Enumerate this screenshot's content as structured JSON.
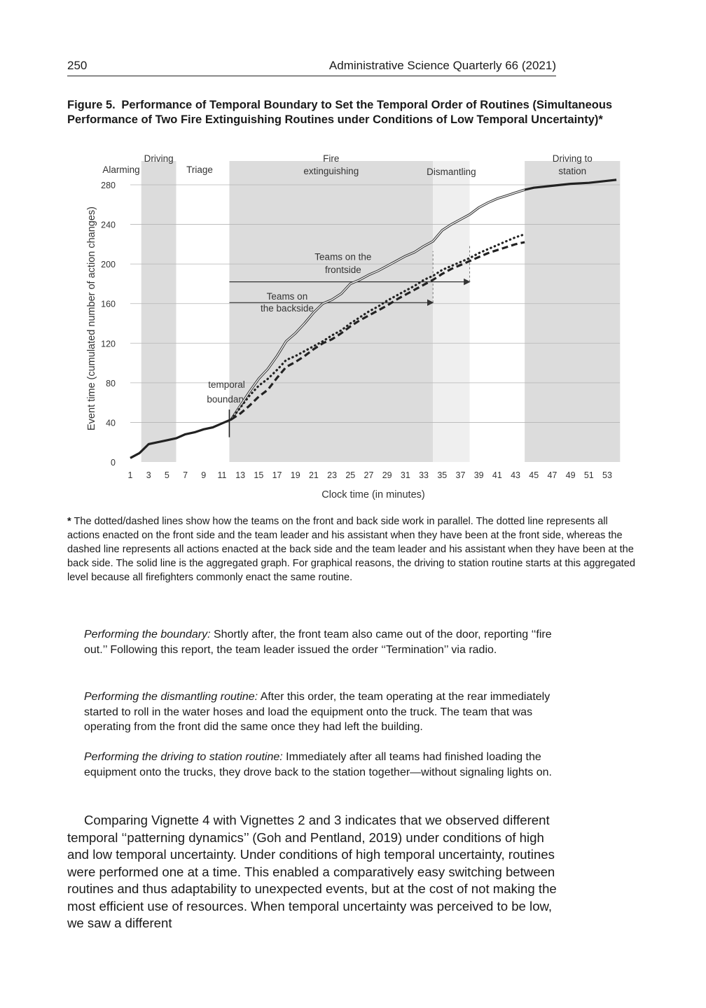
{
  "header": {
    "page_number": "250",
    "journal": "Administrative Science Quarterly 66 (2021)"
  },
  "figure": {
    "label": "Figure 5.",
    "title": "Performance of Temporal Boundary to Set the Temporal Order of Routines (Simultaneous Performance of Two Fire Extinguishing Routines under Conditions of Low Temporal Uncertainty)*"
  },
  "chart_data": {
    "type": "line",
    "xlabel": "Clock time (in minutes)",
    "ylabel": "Event time (cumulated number of action changes)",
    "xlim": [
      1,
      54
    ],
    "ylim": [
      0,
      280
    ],
    "x_ticks": [
      1,
      3,
      5,
      7,
      9,
      11,
      13,
      15,
      17,
      19,
      21,
      23,
      25,
      27,
      29,
      31,
      33,
      35,
      37,
      39,
      41,
      43,
      45,
      47,
      49,
      51,
      53
    ],
    "y_ticks": [
      0,
      40,
      80,
      120,
      160,
      200,
      240,
      280
    ],
    "grid": true,
    "phases": [
      {
        "name": "Alarming",
        "start": 0.5,
        "end": 2.2,
        "shade": "none"
      },
      {
        "name": "Driving",
        "start": 2.2,
        "end": 6.0,
        "shade": "#dcdcdc"
      },
      {
        "name": "Triage",
        "start": 6.0,
        "end": 11.8,
        "shade": "none"
      },
      {
        "name": "Fire extinguishing",
        "start": 11.8,
        "end": 34.0,
        "shade": "#dcdcdc"
      },
      {
        "name": "Dismantling",
        "start": 34.0,
        "end": 38.0,
        "shade": "#efefef"
      },
      {
        "name": "Driving to station",
        "start": 44.0,
        "end": 54.4,
        "shade": "#dcdcdc"
      }
    ],
    "series": [
      {
        "style": "solid-bold",
        "x": [
          1,
          2,
          3,
          4,
          5,
          6,
          7,
          8,
          9,
          10,
          11,
          12
        ],
        "y": [
          4,
          9,
          18,
          20,
          22,
          24,
          28,
          30,
          33,
          35,
          39,
          43
        ]
      },
      {
        "style": "double-outline",
        "x": [
          12,
          13,
          14,
          15,
          16,
          17,
          18,
          19,
          20,
          21,
          22,
          23,
          24,
          25,
          26,
          27,
          28,
          29,
          30,
          31,
          32,
          33,
          34,
          35,
          36,
          37,
          38,
          39,
          40,
          41,
          42,
          43,
          44
        ],
        "y": [
          43,
          57,
          71,
          84,
          94,
          107,
          122,
          130,
          140,
          151,
          160,
          164,
          170,
          180,
          184,
          189,
          193,
          198,
          203,
          208,
          212,
          218,
          223,
          234,
          240,
          245,
          250,
          257,
          262,
          266,
          269,
          272,
          275
        ]
      },
      {
        "style": "dotted",
        "x": [
          12,
          13,
          14,
          15,
          16,
          17,
          18,
          19,
          20,
          21,
          22,
          23,
          24,
          25,
          26,
          27,
          28,
          29,
          30,
          31,
          32,
          33,
          34,
          35,
          36,
          37,
          38,
          39,
          40,
          41,
          42,
          43,
          44
        ],
        "y": [
          43,
          55,
          67,
          77,
          84,
          93,
          103,
          107,
          112,
          117,
          122,
          128,
          133,
          140,
          146,
          152,
          157,
          163,
          168,
          173,
          178,
          184,
          188,
          194,
          198,
          202,
          206,
          211,
          215,
          219,
          223,
          227,
          230
        ]
      },
      {
        "style": "dashed",
        "x": [
          12,
          13,
          14,
          15,
          16,
          17,
          18,
          19,
          20,
          21,
          22,
          23,
          24,
          25,
          26,
          27,
          28,
          29,
          30,
          31,
          32,
          33,
          34,
          35,
          36,
          37,
          38,
          39,
          40,
          41,
          42,
          43,
          44
        ],
        "y": [
          43,
          49,
          57,
          66,
          73,
          85,
          96,
          101,
          107,
          114,
          120,
          124,
          130,
          137,
          143,
          148,
          153,
          158,
          164,
          169,
          174,
          179,
          184,
          190,
          195,
          199,
          203,
          207,
          211,
          214,
          217,
          220,
          222
        ]
      },
      {
        "style": "solid-bold",
        "x": [
          44,
          45,
          47,
          49,
          51,
          53,
          54
        ],
        "y": [
          275,
          277,
          279,
          281,
          282,
          284,
          285
        ]
      }
    ],
    "annotations": [
      {
        "text": "temporal",
        "x": 11.5,
        "y": 75
      },
      {
        "text": "boundary",
        "x": 11.5,
        "y": 60
      },
      {
        "text": "Teams on the",
        "x": 24.2,
        "y": 204
      },
      {
        "text": "frontside",
        "x": 24.2,
        "y": 191
      },
      {
        "text": "Teams on",
        "x": 18.1,
        "y": 164
      },
      {
        "text": "the backside",
        "x": 18.1,
        "y": 152
      }
    ],
    "arrows": [
      {
        "label": "Teams on the frontside",
        "from": 11.8,
        "to": 38.0,
        "y": 182
      },
      {
        "label": "Teams on the backside",
        "from": 11.8,
        "to": 34.0,
        "y": 161
      }
    ],
    "boundary_marker": {
      "x": 11.8,
      "y_from": 25,
      "y_to": 53
    },
    "dividers": [
      {
        "x": 34.0,
        "y_from": 161,
        "y_to": 213
      },
      {
        "x": 38.0,
        "y_from": 182,
        "y_to": 220
      }
    ]
  },
  "footnote": {
    "star": "*",
    "text": " The dotted/dashed lines show how the teams on the front and back side work in parallel. The dotted line represents all actions enacted on the front side and the team leader and his assistant when they have been at the front side, whereas the dashed line represents all actions enacted at the back side and the team leader and his assistant when they have been at the back side. The solid line is the aggregated graph. For graphical reasons, the driving to station routine starts at this aggregated level because all firefighters commonly enact the same routine."
  },
  "vignettes": [
    {
      "heading": "Performing the boundary:",
      "text": " Shortly after, the front team also came out of the door, reporting ‘‘fire out.’’ Following this report, the team leader issued the order ‘‘Termination’’ via radio."
    },
    {
      "heading": "Performing the dismantling routine:",
      "text": " After this order, the team operating at the rear immediately started to roll in the water hoses and load the equipment onto the truck. The team that was operating from the front did the same once they had left the building."
    },
    {
      "heading": "Performing the driving to station routine:",
      "text": " Immediately after all teams had finished loading the equipment onto the trucks, they drove back to the station together—without signaling lights on."
    }
  ],
  "body": {
    "paragraph": "Comparing Vignette 4 with Vignettes 2 and 3 indicates that we observed different temporal ‘‘patterning dynamics’’ (Goh and Pentland, 2019) under conditions of high and low temporal uncertainty. Under conditions of high temporal uncertainty, routines were performed one at a time. This enabled a comparatively easy switching between routines and thus adaptability to unexpected events, but at the cost of not making the most efficient use of resources. When temporal uncertainty was perceived to be low, we saw a different"
  }
}
